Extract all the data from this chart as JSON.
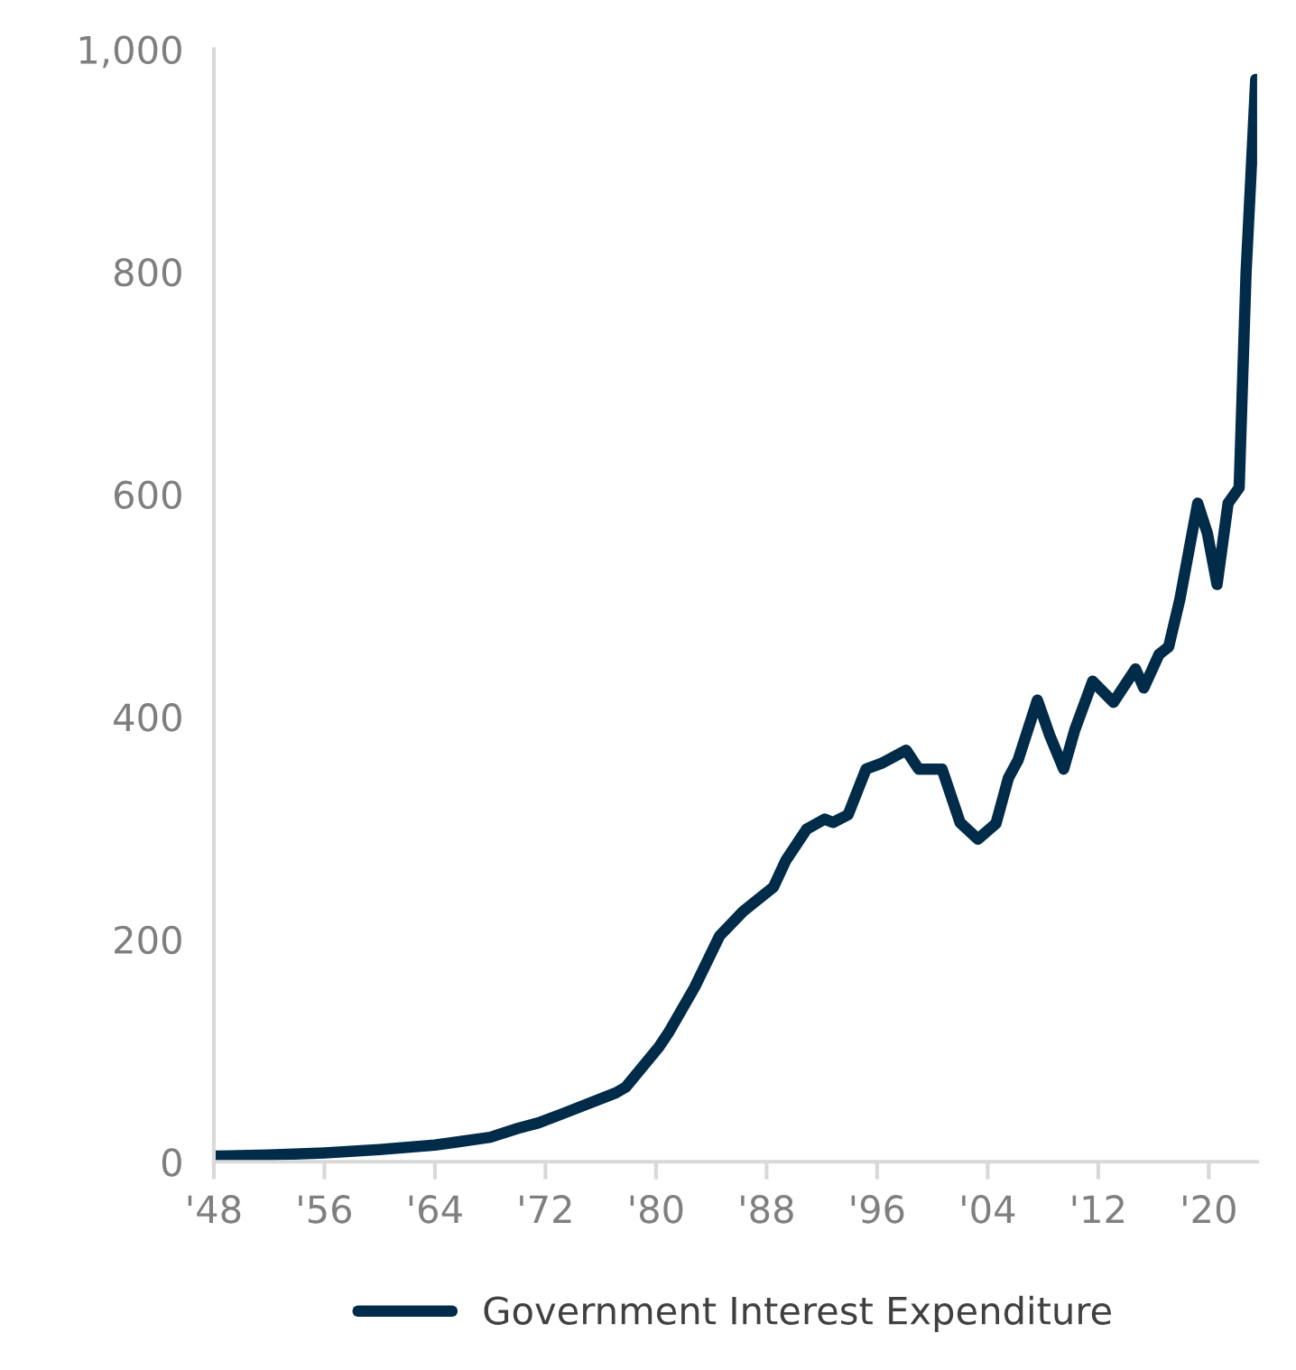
{
  "chart_data": {
    "type": "line",
    "x": [
      1948,
      1952,
      1956,
      1960,
      1964,
      1968,
      1970,
      1971.5,
      1973.2,
      1977.1,
      1977.8,
      1980.2,
      1980.9,
      1982.8,
      1984.6,
      1986.3,
      1988.5,
      1989.4,
      1990.9,
      1992.2,
      1992.8,
      1993.9,
      1995.2,
      1996.3,
      1998.1,
      1999.0,
      2000.7,
      2002.0,
      2003.3,
      2004.6,
      2005.5,
      2006.2,
      2007.6,
      2008.5,
      2009.5,
      2010.3,
      2011.6,
      2013.1,
      2014.7,
      2015.3,
      2016.4,
      2017.1,
      2017.9,
      2019.2,
      2019.9,
      2020.6,
      2021.4,
      2022.2,
      2022.7,
      2023.4
    ],
    "series": [
      {
        "name": "Government Interest Expenditure",
        "color": "#002b49",
        "values": [
          5,
          6,
          8,
          11,
          15,
          22,
          30,
          35,
          43,
          62,
          67,
          103,
          116,
          157,
          203,
          225,
          247,
          271,
          299,
          308,
          305,
          312,
          353,
          358,
          370,
          353,
          353,
          305,
          290,
          304,
          345,
          361,
          415,
          383,
          353,
          388,
          432,
          413,
          443,
          426,
          456,
          463,
          505,
          592,
          565,
          519,
          592,
          606,
          799,
          973
        ]
      }
    ],
    "xlim": [
      1948,
      2023.5
    ],
    "xticks": [
      {
        "value": 1948,
        "label": "'48"
      },
      {
        "value": 1956,
        "label": "'56"
      },
      {
        "value": 1964,
        "label": "'64"
      },
      {
        "value": 1972,
        "label": "'72"
      },
      {
        "value": 1980,
        "label": "'80"
      },
      {
        "value": 1988,
        "label": "'88"
      },
      {
        "value": 1996,
        "label": "'96"
      },
      {
        "value": 2004,
        "label": "'04"
      },
      {
        "value": 2012,
        "label": "'12"
      },
      {
        "value": 2020,
        "label": "'20"
      }
    ],
    "ylim": [
      0,
      1000
    ],
    "yticks": [
      0,
      200,
      400,
      600,
      800,
      {
        "value": 1000,
        "label": "1,000"
      }
    ],
    "grid": false,
    "legend": "bottom",
    "marker": "none",
    "line_style": "solid"
  }
}
